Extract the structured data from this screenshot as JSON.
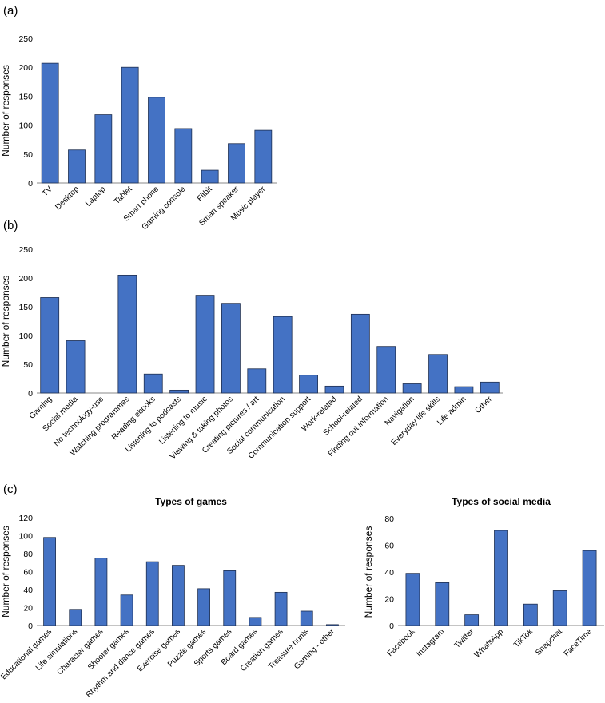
{
  "panel_labels": [
    "(a)",
    "(b)",
    "(c)"
  ],
  "chart_data": [
    {
      "type": "bar",
      "panel": "(a)",
      "title": "",
      "xlabel": "",
      "ylabel": "Number of responses",
      "ylim": [
        0,
        250
      ],
      "yticks": [
        0,
        50,
        100,
        150,
        200,
        250
      ],
      "categories": [
        "TV",
        "Desktop",
        "Laptop",
        "Tablet",
        "Smart phone",
        "Gaming console",
        "Fitbit",
        "Smart speaker",
        "Music player"
      ],
      "values": [
        207,
        57,
        118,
        200,
        148,
        94,
        22,
        68,
        91
      ]
    },
    {
      "type": "bar",
      "panel": "(b)",
      "title": "",
      "xlabel": "",
      "ylabel": "Number of responses",
      "ylim": [
        0,
        250
      ],
      "yticks": [
        0,
        50,
        100,
        150,
        200,
        250
      ],
      "categories": [
        "Gaming",
        "Social media",
        "No technology-use",
        "Watching programmes",
        "Reading ebooks",
        "Listening to podcasts",
        "Listening to music",
        "Viewing & taking photos",
        "Creating pictures / art",
        "Social communication",
        "Communication support",
        "Work-related",
        "School-related",
        "Finding out information",
        "Navigation",
        "Everyday life skills",
        "Life admin",
        "Other"
      ],
      "values": [
        166,
        91,
        0,
        205,
        33,
        5,
        170,
        156,
        42,
        133,
        31,
        12,
        137,
        81,
        16,
        67,
        11,
        19
      ]
    },
    {
      "type": "bar",
      "panel": "(c)",
      "title": "Types of games",
      "xlabel": "",
      "ylabel": "Number of responses",
      "ylim": [
        0,
        120
      ],
      "yticks": [
        0,
        20,
        40,
        60,
        80,
        100,
        120
      ],
      "categories": [
        "Educational games",
        "Life simulations",
        "Character games",
        "Shooter games",
        "Rhythm and dance games",
        "Exercise games",
        "Puzzle games",
        "Sports games",
        "Board games",
        "Creation games",
        "Treasure hunts",
        "Gaming - other"
      ],
      "values": [
        98,
        18,
        75,
        34,
        71,
        67,
        41,
        61,
        9,
        37,
        16,
        1
      ]
    },
    {
      "type": "bar",
      "panel": "(c)",
      "title": "Types of social media",
      "xlabel": "",
      "ylabel": "Number of responses",
      "ylim": [
        0,
        80
      ],
      "yticks": [
        0,
        20,
        40,
        60,
        80
      ],
      "categories": [
        "Facebook",
        "Instagram",
        "Twitter",
        "WhatsApp",
        "TikTok",
        "Snapchat",
        "FaceTime"
      ],
      "values": [
        39,
        32,
        8,
        71,
        16,
        26,
        56
      ]
    }
  ]
}
